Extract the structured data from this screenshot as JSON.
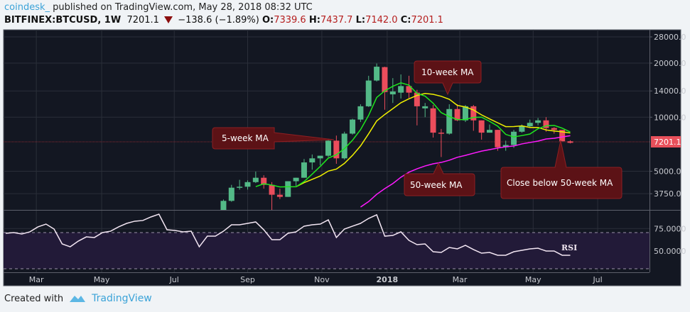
{
  "header": {
    "user": "coindesk_",
    "published": "published on TradingView.com, May 28, 2018 08:32 UTC",
    "symbol": "BITFINEX:BTCUSD, 1W",
    "last": "7201.1",
    "change": "−138.6 (−1.89%)",
    "o_label": "O:",
    "o": "7339.6",
    "h_label": "H:",
    "h": "7437.7",
    "l_label": "L:",
    "l": "7142.0",
    "c_label": "C:",
    "c": "7201.1"
  },
  "footer": {
    "created": "Created with",
    "brand": "TradingView"
  },
  "colors": {
    "up": "#53b987",
    "down": "#eb4d5c",
    "ma5": "#1ee61e",
    "ma10": "#f0f000",
    "ma50": "#ff1aff",
    "bg": "#131722",
    "rsi": "#f3e6f3",
    "rsi_band": "#221a38",
    "note_bg": "#5c1216",
    "note_border": "#8e1f22"
  },
  "chart_data": {
    "type": "candlestick",
    "interval": "1W",
    "y_scale": "log",
    "y_ticks": [
      "28000.0",
      "20000.0",
      "14000.0",
      "10000.0",
      "5000.0",
      "3750.0"
    ],
    "y_tick_values": [
      28000,
      20000,
      14000,
      10000,
      5000,
      3750
    ],
    "last_price_label": "7201.1",
    "last_price": 7201.1,
    "x_ticks": [
      {
        "label": "Mar",
        "week": -23.2,
        "bold": false
      },
      {
        "label": "May",
        "week": -15.1,
        "bold": false
      },
      {
        "label": "Jul",
        "week": -6.1,
        "bold": false
      },
      {
        "label": "Sep",
        "week": 3.0,
        "bold": false
      },
      {
        "label": "Nov",
        "week": 12.2,
        "bold": false
      },
      {
        "label": "2018",
        "week": 20.3,
        "bold": true
      },
      {
        "label": "Mar",
        "week": 29.3,
        "bold": false
      },
      {
        "label": "May",
        "week": 38.4,
        "bold": false
      },
      {
        "label": "Jul",
        "week": 46.4,
        "bold": false
      }
    ],
    "candles": [
      [
        2870,
        3480,
        2700,
        3420
      ],
      [
        3420,
        4200,
        3380,
        4050
      ],
      [
        4050,
        4480,
        3950,
        4100
      ],
      [
        4100,
        4450,
        3950,
        4350
      ],
      [
        4350,
        4980,
        4300,
        4600
      ],
      [
        4600,
        4750,
        4000,
        4200
      ],
      [
        4200,
        4350,
        2970,
        3700
      ],
      [
        3700,
        4000,
        3500,
        3600
      ],
      [
        3600,
        4400,
        3600,
        4400
      ],
      [
        4400,
        4600,
        4150,
        4600
      ],
      [
        4600,
        5850,
        4600,
        5600
      ],
      [
        5600,
        6200,
        5100,
        5900
      ],
      [
        5900,
        6100,
        5400,
        6100
      ],
      [
        6100,
        7600,
        6000,
        7400
      ],
      [
        7400,
        7900,
        5500,
        5900
      ],
      [
        5900,
        8300,
        5800,
        8100
      ],
      [
        8100,
        9800,
        8000,
        9700
      ],
      [
        9700,
        11800,
        9400,
        11500
      ],
      [
        11500,
        17000,
        11400,
        16000
      ],
      [
        16000,
        19900,
        15800,
        19100
      ],
      [
        19000,
        19100,
        11000,
        13800
      ],
      [
        13400,
        16500,
        12000,
        13900
      ],
      [
        13700,
        17300,
        12700,
        14900
      ],
      [
        14900,
        17000,
        12800,
        13700
      ],
      [
        13700,
        14200,
        9000,
        11500
      ],
      [
        11200,
        12000,
        10000,
        11500
      ],
      [
        11200,
        11700,
        7700,
        8200
      ],
      [
        8200,
        8600,
        6000,
        8100
      ],
      [
        8100,
        11800,
        8000,
        11100
      ],
      [
        11100,
        11800,
        9500,
        9600
      ],
      [
        9600,
        11700,
        9400,
        11500
      ],
      [
        11500,
        11700,
        8400,
        9600
      ],
      [
        9600,
        9600,
        7500,
        8200
      ],
      [
        8200,
        9100,
        8200,
        8500
      ],
      [
        8500,
        8500,
        6500,
        6800
      ],
      [
        6800,
        7400,
        6500,
        7000
      ],
      [
        7000,
        8500,
        6750,
        8300
      ],
      [
        8300,
        9100,
        8200,
        8900
      ],
      [
        8900,
        9700,
        8800,
        9300
      ],
      [
        9300,
        9900,
        9000,
        9600
      ],
      [
        9600,
        10000,
        8300,
        8700
      ],
      [
        8700,
        8800,
        8100,
        8500
      ],
      [
        8500,
        8500,
        7400,
        7340
      ],
      [
        7339.6,
        7437.7,
        7142.0,
        7201.1
      ]
    ],
    "ma50": {
      "start": 17,
      "values": [
        3160,
        3390,
        3720,
        4000,
        4270,
        4630,
        4940,
        5160,
        5350,
        5500,
        5600,
        5760,
        5980,
        6130,
        6300,
        6470,
        6600,
        6730,
        6840,
        6910,
        7100,
        7230,
        7360,
        7560,
        7630,
        7760,
        7890
      ]
    },
    "rsi": {
      "label": "RSI",
      "start_week": -27,
      "y_ticks": [
        "75.0000",
        "50.0000"
      ],
      "y_tick_values": [
        75,
        50
      ],
      "band": [
        30,
        70
      ],
      "values": [
        69.7,
        70.5,
        68.9,
        71.3,
        76.8,
        79.9,
        74.4,
        57.9,
        54.7,
        61.0,
        65.7,
        65.0,
        70.5,
        72.0,
        76.8,
        80.7,
        83.1,
        83.9,
        87.8,
        90.9,
        73.6,
        72.8,
        71.3,
        72.0,
        54.7,
        66.5,
        66.5,
        72.0,
        79.1,
        79.1,
        80.7,
        82.3,
        73.6,
        62.6,
        62.6,
        69.7,
        71.3,
        77.6,
        79.1,
        79.9,
        84.6,
        65.0,
        74.4,
        77.6,
        80.7,
        86.2,
        90.2,
        66.5,
        67.3,
        71.3,
        61.8,
        57.1,
        57.9,
        49.2,
        48.4,
        53.9,
        52.4,
        56.3,
        51.6,
        47.6,
        48.4,
        45.3,
        45.3,
        49.2,
        50.8,
        52.4,
        53.1,
        50.0,
        50.0,
        45.3,
        45.3
      ]
    },
    "annotations": [
      {
        "id": "ma5",
        "text": "5-week MA"
      },
      {
        "id": "ma10",
        "text": "10-week MA"
      },
      {
        "id": "ma50",
        "text": "50-week MA"
      },
      {
        "id": "close",
        "text": "Close below 50-week MA"
      }
    ]
  }
}
